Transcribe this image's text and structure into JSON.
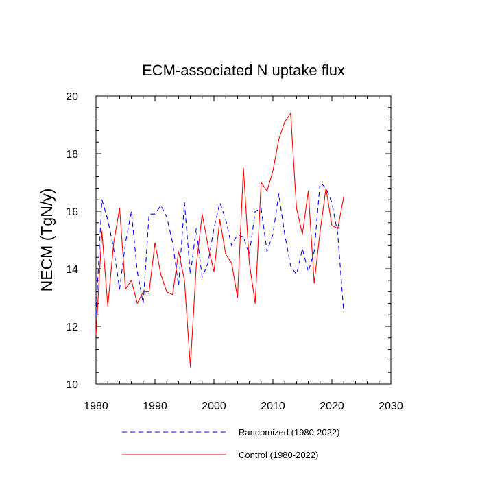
{
  "chart_data": {
    "type": "line",
    "title": "ECM-associated N uptake flux",
    "xlabel": "",
    "ylabel": "NECM  (TgN/y)",
    "xlim": [
      1980,
      2030
    ],
    "ylim": [
      10,
      20
    ],
    "x_ticks": [
      1980,
      1990,
      2000,
      2010,
      2020,
      2030
    ],
    "y_ticks": [
      10,
      12,
      14,
      16,
      18,
      20
    ],
    "grid": false,
    "legend_position": "bottom",
    "x": [
      1980,
      1981,
      1982,
      1983,
      1984,
      1985,
      1986,
      1987,
      1988,
      1989,
      1990,
      1991,
      1992,
      1993,
      1994,
      1995,
      1996,
      1997,
      1998,
      1999,
      2000,
      2001,
      2002,
      2003,
      2004,
      2005,
      2006,
      2007,
      2008,
      2009,
      2010,
      2011,
      2012,
      2013,
      2014,
      2015,
      2016,
      2017,
      2018,
      2019,
      2020,
      2021,
      2022
    ],
    "series": [
      {
        "name": "Randomized (1980-2022)",
        "color": "#0000ff",
        "dash": "dashed",
        "values": [
          12.4,
          16.4,
          15.7,
          14.7,
          13.3,
          14.9,
          16.0,
          13.9,
          12.8,
          15.9,
          15.9,
          16.2,
          15.8,
          14.9,
          13.4,
          16.3,
          13.8,
          15.4,
          13.7,
          14.2,
          15.4,
          16.3,
          15.7,
          14.8,
          15.2,
          15.1,
          14.5,
          16.0,
          16.1,
          14.6,
          15.2,
          16.6,
          15.2,
          14.1,
          13.8,
          14.7,
          13.9,
          14.6,
          17.0,
          16.8,
          16.3,
          15.2,
          12.5
        ]
      },
      {
        "name": "Control (1980-2022)",
        "color": "#ff0000",
        "dash": "solid",
        "values": [
          11.7,
          15.3,
          12.7,
          14.9,
          16.1,
          13.3,
          13.6,
          12.8,
          13.2,
          13.2,
          14.9,
          13.8,
          13.2,
          13.1,
          14.6,
          13.6,
          10.6,
          14.1,
          15.9,
          14.8,
          13.9,
          15.7,
          14.5,
          14.2,
          13.0,
          17.5,
          14.2,
          12.8,
          17.0,
          16.7,
          17.4,
          18.5,
          19.1,
          19.4,
          16.1,
          15.2,
          16.7,
          13.5,
          15.3,
          16.8,
          15.5,
          15.4,
          16.5
        ]
      }
    ]
  }
}
